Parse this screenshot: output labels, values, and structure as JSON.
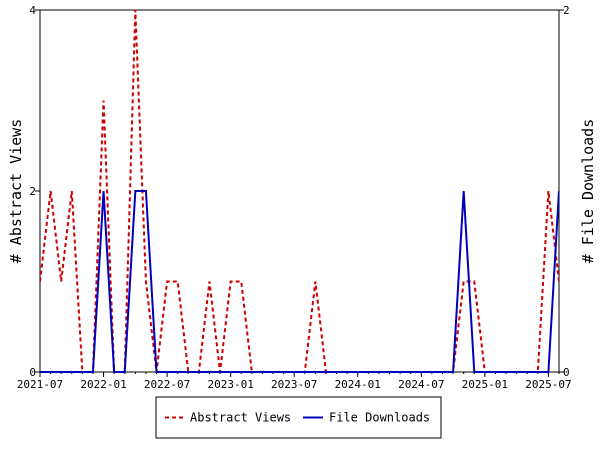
{
  "chart_data": {
    "type": "line",
    "title": "",
    "xlabel": "",
    "ylabel_left": "# Abstract Views",
    "ylabel_right": "# File Downloads",
    "x_ticks": [
      "2021-07",
      "2022-01",
      "2022-07",
      "2023-01",
      "2023-07",
      "2024-01",
      "2024-07",
      "2025-01",
      "2025-07"
    ],
    "x_start": "2021-07",
    "x_end": "2025-08",
    "y_left_lim": [
      0,
      4
    ],
    "y_left_ticks": [
      0,
      2,
      4
    ],
    "y_right_lim": [
      0,
      2
    ],
    "y_right_ticks": [
      0,
      2
    ],
    "grid": false,
    "legend_position": "bottom-center",
    "series": [
      {
        "name": "Abstract Views",
        "axis": "left",
        "color": "#cc0000",
        "style": "dashed",
        "x": [
          "2021-07",
          "2021-08",
          "2021-09",
          "2021-10",
          "2021-11",
          "2021-12",
          "2022-01",
          "2022-02",
          "2022-03",
          "2022-04",
          "2022-05",
          "2022-06",
          "2022-07",
          "2022-08",
          "2022-09",
          "2022-10",
          "2022-11",
          "2022-12",
          "2023-01",
          "2023-02",
          "2023-03",
          "2023-04",
          "2023-05",
          "2023-06",
          "2023-07",
          "2023-08",
          "2023-09",
          "2023-10",
          "2023-11",
          "2023-12",
          "2024-01",
          "2024-02",
          "2024-03",
          "2024-04",
          "2024-05",
          "2024-06",
          "2024-07",
          "2024-08",
          "2024-09",
          "2024-10",
          "2024-11",
          "2024-12",
          "2025-01",
          "2025-02",
          "2025-03",
          "2025-04",
          "2025-05",
          "2025-06",
          "2025-07",
          "2025-08"
        ],
        "values": [
          1,
          2,
          1,
          2,
          0,
          0,
          3,
          0,
          0,
          4,
          1,
          0,
          1,
          1,
          0,
          0,
          1,
          0,
          1,
          1,
          0,
          0,
          0,
          0,
          0,
          0,
          1,
          0,
          0,
          0,
          0,
          0,
          0,
          0,
          0,
          0,
          0,
          0,
          0,
          0,
          1,
          1,
          0,
          0,
          0,
          0,
          0,
          0,
          2,
          1
        ]
      },
      {
        "name": "File Downloads",
        "axis": "right",
        "color": "#0000bb",
        "style": "solid",
        "x": [
          "2021-07",
          "2021-08",
          "2021-09",
          "2021-10",
          "2021-11",
          "2021-12",
          "2022-01",
          "2022-02",
          "2022-03",
          "2022-04",
          "2022-05",
          "2022-06",
          "2022-07",
          "2022-08",
          "2022-09",
          "2022-10",
          "2022-11",
          "2022-12",
          "2023-01",
          "2023-02",
          "2023-03",
          "2023-04",
          "2023-05",
          "2023-06",
          "2023-07",
          "2023-08",
          "2023-09",
          "2023-10",
          "2023-11",
          "2023-12",
          "2024-01",
          "2024-02",
          "2024-03",
          "2024-04",
          "2024-05",
          "2024-06",
          "2024-07",
          "2024-08",
          "2024-09",
          "2024-10",
          "2024-11",
          "2024-12",
          "2025-01",
          "2025-02",
          "2025-03",
          "2025-04",
          "2025-05",
          "2025-06",
          "2025-07",
          "2025-08"
        ],
        "values": [
          0,
          0,
          0,
          0,
          0,
          0,
          1,
          0,
          0,
          1,
          1,
          0,
          0,
          0,
          0,
          0,
          0,
          0,
          0,
          0,
          0,
          0,
          0,
          0,
          0,
          0,
          0,
          0,
          0,
          0,
          0,
          0,
          0,
          0,
          0,
          0,
          0,
          0,
          0,
          0,
          1,
          0,
          0,
          0,
          0,
          0,
          0,
          0,
          0,
          1
        ]
      }
    ]
  }
}
